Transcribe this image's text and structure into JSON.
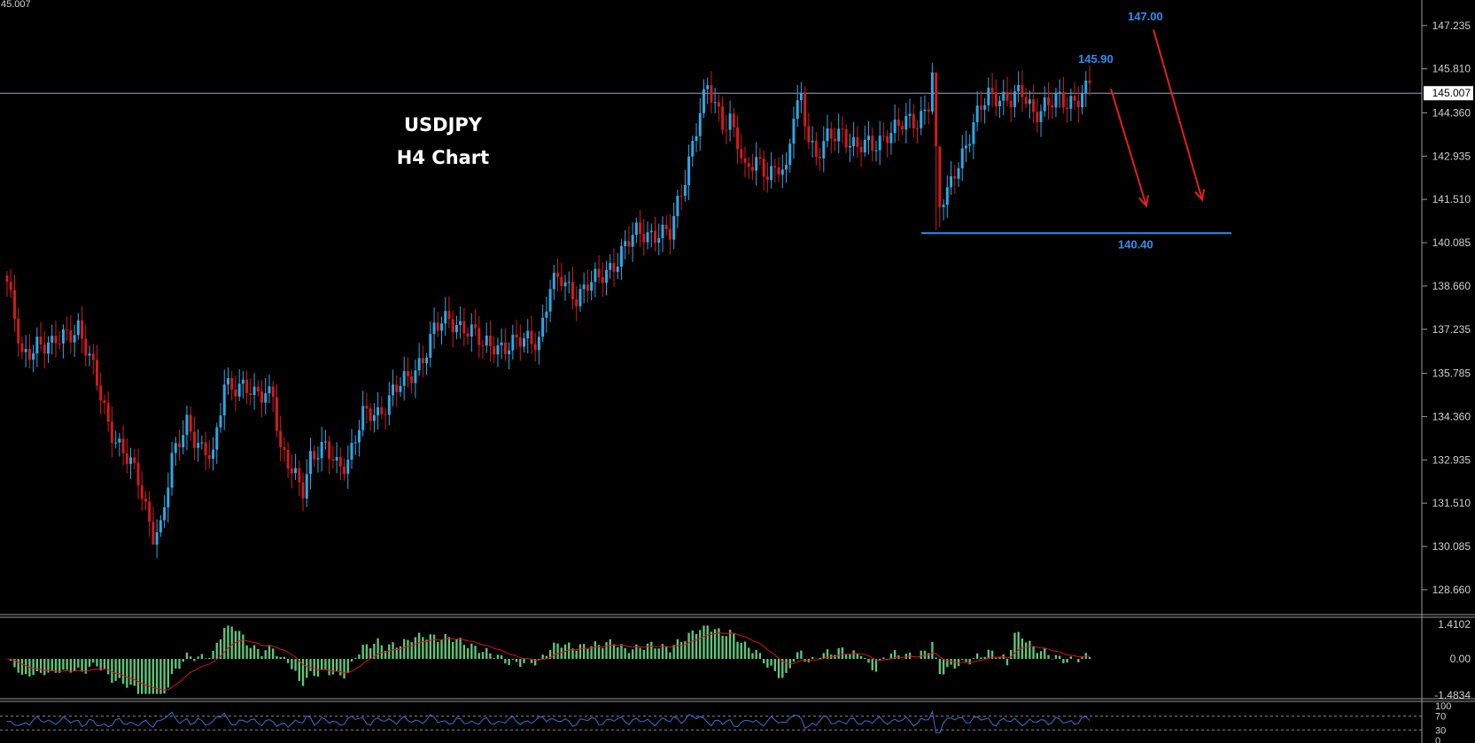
{
  "colors": {
    "background": "#000000",
    "bull": "#2aa9e6",
    "bear": "#d51a1a",
    "grid_line": "#9aa4c0",
    "support": "#2e8ef0",
    "arrow": "#e02020",
    "macd_hist": "#5fc57a",
    "macd_signal": "#e01010",
    "rsi": "#3a6fd6",
    "axis_text": "#d0d0d0"
  },
  "chart_data": {
    "type": "candlestick",
    "title": "USDJPY",
    "subtitle": "H4 Chart",
    "corner_label": "45.007",
    "current_price": 145.007,
    "current_price_label": "145.007",
    "ylim": [
      127.9,
      147.9
    ],
    "yticks": [
      {
        "value": 147.235,
        "label": "147.235"
      },
      {
        "value": 145.81,
        "label": "145.810"
      },
      {
        "value": 144.36,
        "label": "144.360"
      },
      {
        "value": 142.935,
        "label": "142.935"
      },
      {
        "value": 141.51,
        "label": "141.510"
      },
      {
        "value": 140.085,
        "label": "140.085"
      },
      {
        "value": 138.66,
        "label": "138.660"
      },
      {
        "value": 137.235,
        "label": "137.235"
      },
      {
        "value": 135.785,
        "label": "135.785"
      },
      {
        "value": 134.36,
        "label": "134.360"
      },
      {
        "value": 132.935,
        "label": "132.935"
      },
      {
        "value": 131.51,
        "label": "131.510"
      },
      {
        "value": 130.085,
        "label": "130.085"
      },
      {
        "value": 128.66,
        "label": "128.660"
      }
    ],
    "anchors": [
      [
        0,
        138.8
      ],
      [
        4,
        136.2
      ],
      [
        8,
        136.9
      ],
      [
        12,
        136.6
      ],
      [
        16,
        137.1
      ],
      [
        19,
        137.4
      ],
      [
        23,
        135.8
      ],
      [
        27,
        134.2
      ],
      [
        31,
        133.2
      ],
      [
        35,
        132.2
      ],
      [
        39,
        130.6
      ],
      [
        41,
        130.7
      ],
      [
        44,
        132.8
      ],
      [
        48,
        134.3
      ],
      [
        52,
        133.2
      ],
      [
        55,
        132.9
      ],
      [
        58,
        135.6
      ],
      [
        62,
        135.3
      ],
      [
        66,
        135.0
      ],
      [
        69,
        135.3
      ],
      [
        71,
        135.2
      ],
      [
        73,
        133.1
      ],
      [
        76,
        132.5
      ],
      [
        79,
        132.1
      ],
      [
        81,
        133.1
      ],
      [
        85,
        133.2
      ],
      [
        88,
        132.8
      ],
      [
        91,
        133.0
      ],
      [
        95,
        134.3
      ],
      [
        99,
        134.5
      ],
      [
        103,
        135.2
      ],
      [
        107,
        135.5
      ],
      [
        111,
        136.4
      ],
      [
        114,
        137.2
      ],
      [
        118,
        137.5
      ],
      [
        122,
        137.4
      ],
      [
        125,
        137.0
      ],
      [
        127,
        136.6
      ],
      [
        130,
        136.8
      ],
      [
        133,
        136.7
      ],
      [
        136,
        136.7
      ],
      [
        139,
        136.9
      ],
      [
        142,
        137.0
      ],
      [
        145,
        138.6
      ],
      [
        148,
        138.8
      ],
      [
        152,
        138.4
      ],
      [
        155,
        138.7
      ],
      [
        158,
        138.8
      ],
      [
        161,
        139.3
      ],
      [
        165,
        140.0
      ],
      [
        168,
        140.3
      ],
      [
        171,
        140.4
      ],
      [
        174,
        140.5
      ],
      [
        177,
        140.3
      ],
      [
        180,
        141.7
      ],
      [
        182,
        142.9
      ],
      [
        185,
        144.5
      ],
      [
        187,
        145.1
      ],
      [
        189,
        144.5
      ],
      [
        191,
        144.0
      ],
      [
        193,
        144.3
      ],
      [
        195,
        143.5
      ],
      [
        197,
        142.3
      ],
      [
        200,
        142.7
      ],
      [
        203,
        142.5
      ],
      [
        206,
        142.6
      ],
      [
        208,
        142.2
      ],
      [
        210,
        144.3
      ],
      [
        212,
        144.9
      ],
      [
        214,
        143.7
      ],
      [
        216,
        142.9
      ],
      [
        219,
        143.4
      ],
      [
        223,
        143.8
      ],
      [
        227,
        143.2
      ],
      [
        231,
        143.2
      ],
      [
        235,
        143.8
      ],
      [
        239,
        143.9
      ],
      [
        243,
        144.1
      ],
      [
        246,
        144.8
      ],
      [
        247,
        145.7
      ],
      [
        248,
        142.9
      ],
      [
        249,
        141.2
      ],
      [
        251,
        141.6
      ],
      [
        253,
        142.5
      ],
      [
        256,
        143.4
      ],
      [
        259,
        144.2
      ],
      [
        262,
        144.9
      ],
      [
        265,
        145.0
      ],
      [
        268,
        144.8
      ],
      [
        271,
        144.9
      ],
      [
        274,
        144.4
      ],
      [
        277,
        144.7
      ],
      [
        280,
        144.7
      ],
      [
        283,
        144.6
      ],
      [
        286,
        145.0
      ],
      [
        288,
        145.2
      ],
      [
        289,
        145.4
      ]
    ],
    "overrides": {
      "247": {
        "high": 146.0,
        "low": 144.3
      },
      "248": {
        "high": 145.2,
        "low": 140.5
      },
      "249": {
        "high": 142.4,
        "low": 140.6
      },
      "41": {
        "low": 130.4
      },
      "39": {
        "low": 130.5
      }
    },
    "support_level": {
      "value": 140.4,
      "label": "140.40"
    },
    "targets": [
      {
        "value": 147.0,
        "label": "147.00"
      },
      {
        "value": 145.9,
        "label": "145.90"
      }
    ],
    "arrows": [
      {
        "from": 145.15,
        "to": 141.3
      },
      {
        "from": 147.1,
        "to": 141.5
      }
    ],
    "macd": {
      "ylim": [
        -1.4834,
        1.4102
      ],
      "yticks": [
        {
          "value": 1.4102,
          "label": "1.4102"
        },
        {
          "value": 0.0,
          "label": "0.00"
        },
        {
          "value": -1.4834,
          "label": "-1.4834"
        }
      ]
    },
    "rsi": {
      "ylim": [
        0,
        100
      ],
      "levels": [
        70,
        30
      ],
      "yticks": [
        {
          "value": 100,
          "label": "100"
        },
        {
          "value": 70,
          "label": "70"
        },
        {
          "value": 30,
          "label": "30"
        },
        {
          "value": 0,
          "label": "0"
        }
      ]
    }
  }
}
